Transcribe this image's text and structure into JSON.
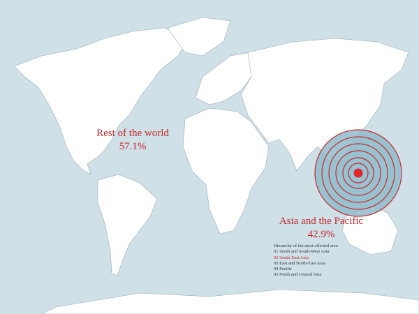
{
  "colors": {
    "ocean": "#cfe0e7",
    "land": "#ffffff",
    "accent": "#c3282e",
    "rings_fill": "#8fbccb"
  },
  "labels": {
    "rest_title": "Rest of the world",
    "rest_value": "57.1%",
    "asia_title": "Asia and the Pacific",
    "asia_value": "42.9%"
  },
  "legend": {
    "title": "Hierarchy of the most affected area",
    "items": [
      {
        "label": "01 South and South-West Asia",
        "highlighted": false
      },
      {
        "label": "02 South-East Asia",
        "highlighted": true
      },
      {
        "label": "03 East and North-East Asia",
        "highlighted": false
      },
      {
        "label": "04 Pacific",
        "highlighted": false
      },
      {
        "label": "05 North and Central Asia",
        "highlighted": false
      }
    ]
  }
}
